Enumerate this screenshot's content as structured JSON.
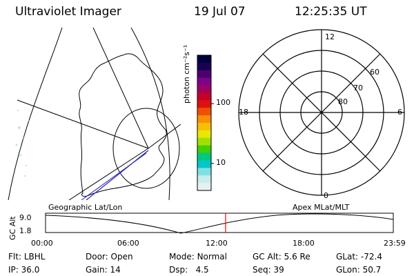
{
  "header": {
    "title": "Ultraviolet Imager",
    "date": "19 Jul 07",
    "time": "12:25:35 UT"
  },
  "colorbar": {
    "unit_label": "photon cm⁻²s⁻¹",
    "ticks": [
      "100",
      "10"
    ],
    "colors": [
      "#000040",
      "#1a0050",
      "#4a0070",
      "#80008a",
      "#a00060",
      "#c80028",
      "#e01010",
      "#f05000",
      "#f89000",
      "#f8c000",
      "#e8e800",
      "#a0e000",
      "#40d000",
      "#00c880",
      "#00c8c8",
      "#80e0e0",
      "#c8ecec",
      "#e6f0f0"
    ]
  },
  "polar_plot": {
    "mlt_labels": {
      "top": "12",
      "left": "18",
      "right": "6",
      "bottom": "0"
    },
    "lat_labels": [
      "60",
      "70",
      "80"
    ]
  },
  "map_panel": {
    "caption_left": "Geographic Lat/Lon",
    "caption_right": "Apex MLat/MLT"
  },
  "altitude_strip": {
    "axis_label": "GC Alt",
    "y_ticks": [
      "9.0",
      "1.8"
    ],
    "x_ticks": [
      "00:00",
      "06:00",
      "12:00",
      "18:00",
      "23:59"
    ],
    "current_time_marker_fraction": 0.5177,
    "marker_color": "#ff0000"
  },
  "info": {
    "flt": {
      "label": "Flt:",
      "value": "LBHL"
    },
    "ip": {
      "label": "IP:",
      "value": "36.0"
    },
    "door": {
      "label": "Door:",
      "value": "Open"
    },
    "gain": {
      "label": "Gain:",
      "value": "14"
    },
    "mode": {
      "label": "Mode:",
      "value": "Normal"
    },
    "dsp": {
      "label": "Dsp:",
      "value": "4.5"
    },
    "gcalt": {
      "label": "GC Alt:",
      "value": "5.6 Re"
    },
    "seq": {
      "label": "Seq:",
      "value": "39"
    },
    "glat": {
      "label": "GLat:",
      "value": "-72.4"
    },
    "glon": {
      "label": "GLon:",
      "value": "50.7"
    }
  }
}
